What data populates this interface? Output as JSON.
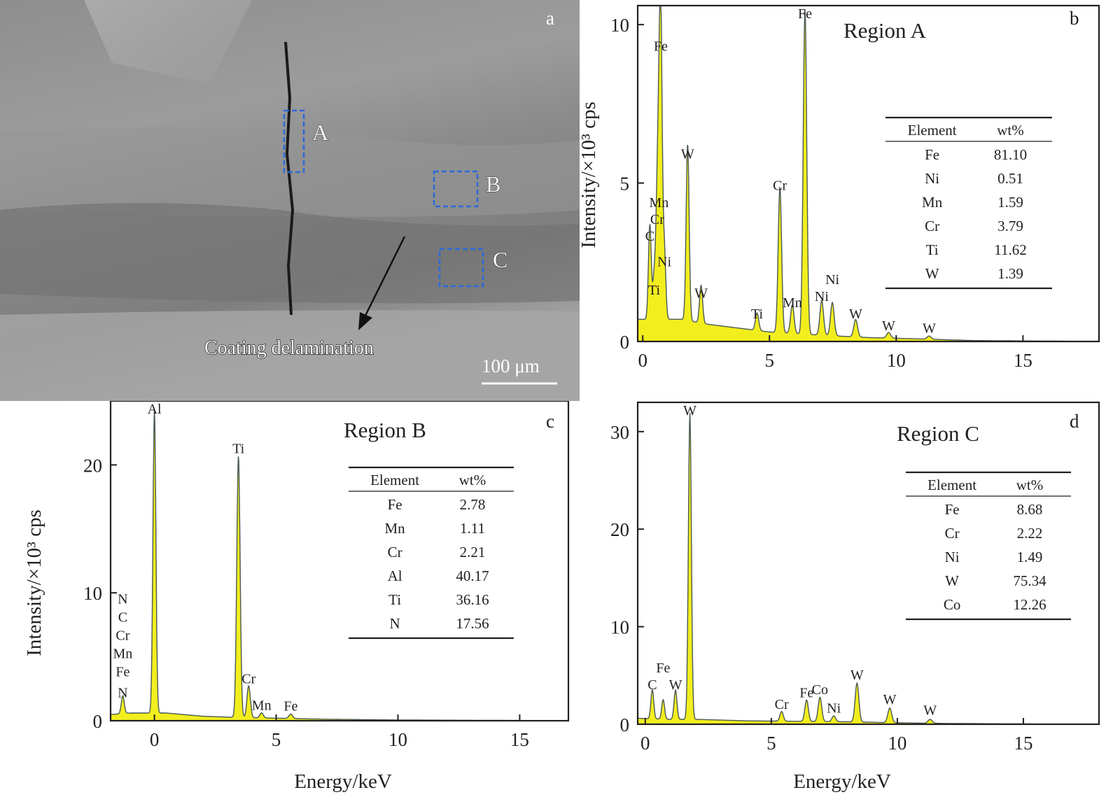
{
  "sem": {
    "panel_letter": "a",
    "region_labels": [
      "A",
      "B",
      "C"
    ],
    "arrow_label": "Coating delamination",
    "scale_bar": "100 μm"
  },
  "colors": {
    "spectrum_fill": "#f2ee1e",
    "spectrum_line": "#4a5a55",
    "box_stroke": "#2a6ad8",
    "axis": "#231f20"
  },
  "chart_data": [
    {
      "panel": "b",
      "type": "area",
      "title": "Region A",
      "xlabel": "",
      "ylabel": "Intensity/×10³ cps",
      "xlim": [
        -0.2,
        18
      ],
      "ylim": [
        0,
        10.6
      ],
      "xticks": [
        0,
        5,
        10,
        15
      ],
      "yticks": [
        0,
        5,
        10
      ],
      "baseline": [
        [
          0.1,
          0.7
        ],
        [
          1.0,
          0.7
        ],
        [
          1.5,
          0.7
        ],
        [
          2.5,
          0.55
        ],
        [
          4.0,
          0.4
        ],
        [
          5.0,
          0.3
        ],
        [
          7.0,
          0.2
        ],
        [
          9.0,
          0.12
        ],
        [
          11.0,
          0.08
        ],
        [
          13.0,
          0.03
        ],
        [
          18.0,
          0.0
        ]
      ],
      "peaks": [
        {
          "label": "Fe",
          "x": 0.71,
          "y": 9.0
        },
        {
          "label": "C",
          "x": 0.28,
          "y": 3.0
        },
        {
          "label": "Ni",
          "x": 0.85,
          "y": 2.2
        },
        {
          "label": "Cr",
          "x": 0.57,
          "y": 3.3
        },
        {
          "label": "Mn",
          "x": 0.64,
          "y": 2.9
        },
        {
          "label": "Ti",
          "x": 0.45,
          "y": 1.3
        },
        {
          "label": "W",
          "x": 1.77,
          "y": 5.6
        },
        {
          "label": "W",
          "x": 2.3,
          "y": 1.2
        },
        {
          "label": "Ti",
          "x": 4.51,
          "y": 0.55
        },
        {
          "label": "Cr",
          "x": 5.41,
          "y": 4.6
        },
        {
          "label": "Mn",
          "x": 5.9,
          "y": 0.9
        },
        {
          "label": "Fe",
          "x": 6.4,
          "y": 10.3
        },
        {
          "label": "Ni",
          "x": 7.06,
          "y": 1.1
        },
        {
          "label": "Ni",
          "x": 7.48,
          "y": 1.05
        },
        {
          "label": "W",
          "x": 8.4,
          "y": 0.55
        },
        {
          "label": "W",
          "x": 9.7,
          "y": 0.18
        },
        {
          "label": "W",
          "x": 11.3,
          "y": 0.1
        }
      ],
      "table": {
        "headers": [
          "Element",
          "wt%"
        ],
        "rows": [
          [
            "Fe",
            "81.10"
          ],
          [
            "Ni",
            "0.51"
          ],
          [
            "Mn",
            "1.59"
          ],
          [
            "Cr",
            "3.79"
          ],
          [
            "Ti",
            "11.62"
          ],
          [
            "W",
            "1.39"
          ]
        ]
      }
    },
    {
      "panel": "c",
      "type": "area",
      "title": "Region B",
      "xlabel": "Energy/keV",
      "ylabel": "Intensity/×10³ cps",
      "xlim": [
        -1.8,
        17
      ],
      "ylim": [
        0,
        25
      ],
      "xticks": [
        0,
        5,
        10,
        15
      ],
      "yticks": [
        0,
        10,
        20
      ],
      "baseline": [
        [
          -1.7,
          0.5
        ],
        [
          -1.0,
          0.6
        ],
        [
          0.5,
          0.6
        ],
        [
          2.0,
          0.35
        ],
        [
          3.5,
          0.25
        ],
        [
          5.0,
          0.2
        ],
        [
          7.0,
          0.12
        ],
        [
          10.0,
          0.06
        ],
        [
          15.0,
          0.02
        ],
        [
          17.0,
          0.0
        ]
      ],
      "peaks": [
        {
          "label": "Al",
          "x": 0.0,
          "y": 23.8
        },
        {
          "label": "Ti",
          "x": 3.45,
          "y": 20.5
        },
        {
          "label": "N",
          "x": -1.3,
          "y": 1.4
        },
        {
          "label": "Cr",
          "x": 3.87,
          "y": 2.5
        },
        {
          "label": "Mn",
          "x": 4.4,
          "y": 0.4
        },
        {
          "label": "Fe",
          "x": 5.6,
          "y": 0.35
        }
      ],
      "stack_labels": [
        "N",
        "C",
        "Cr",
        "Mn",
        "Fe"
      ],
      "table": {
        "headers": [
          "Element",
          "wt%"
        ],
        "rows": [
          [
            "Fe",
            "2.78"
          ],
          [
            "Mn",
            "1.11"
          ],
          [
            "Cr",
            "2.21"
          ],
          [
            "Al",
            "40.17"
          ],
          [
            "Ti",
            "36.16"
          ],
          [
            "N",
            "17.56"
          ]
        ]
      }
    },
    {
      "panel": "d",
      "type": "area",
      "title": "Region C",
      "xlabel": "Energy/keV",
      "ylabel": "",
      "xlim": [
        -0.3,
        18
      ],
      "ylim": [
        0,
        33
      ],
      "xticks": [
        0,
        5,
        10,
        15
      ],
      "yticks": [
        0,
        10,
        20,
        30
      ],
      "baseline": [
        [
          -0.2,
          0.6
        ],
        [
          1.0,
          0.5
        ],
        [
          2.0,
          0.5
        ],
        [
          4.0,
          0.35
        ],
        [
          6.0,
          0.3
        ],
        [
          8.0,
          0.25
        ],
        [
          10.0,
          0.15
        ],
        [
          12.0,
          0.08
        ],
        [
          15.0,
          0.03
        ],
        [
          18.0,
          0.0
        ]
      ],
      "peaks": [
        {
          "label": "W",
          "x": 1.77,
          "y": 31.5
        },
        {
          "label": "C",
          "x": 0.28,
          "y": 3.0
        },
        {
          "label": "Fe",
          "x": 0.71,
          "y": 2.0
        },
        {
          "label": "W",
          "x": 1.2,
          "y": 3.0
        },
        {
          "label": "Cr",
          "x": 5.41,
          "y": 1.0
        },
        {
          "label": "Fe",
          "x": 6.4,
          "y": 2.2
        },
        {
          "label": "Co",
          "x": 6.93,
          "y": 2.5
        },
        {
          "label": "Ni",
          "x": 7.48,
          "y": 0.6
        },
        {
          "label": "W",
          "x": 8.4,
          "y": 4.0
        },
        {
          "label": "W",
          "x": 9.7,
          "y": 1.5
        },
        {
          "label": "W",
          "x": 11.3,
          "y": 0.4
        }
      ],
      "table": {
        "headers": [
          "Element",
          "wt%"
        ],
        "rows": [
          [
            "Fe",
            "8.68"
          ],
          [
            "Cr",
            "2.22"
          ],
          [
            "Ni",
            "1.49"
          ],
          [
            "W",
            "75.34"
          ],
          [
            "Co",
            "12.26"
          ]
        ]
      }
    }
  ]
}
